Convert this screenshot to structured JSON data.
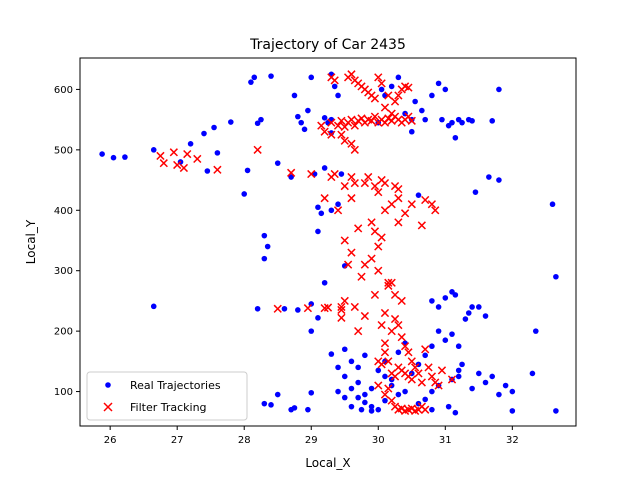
{
  "chart_data": {
    "type": "scatter",
    "title": "Trajectory of Car 2435",
    "xlabel": "Local_X",
    "ylabel": "Local_Y",
    "xlim": [
      25.55,
      32.95
    ],
    "ylim": [
      43,
      652
    ],
    "xticks": [
      26,
      27,
      28,
      29,
      30,
      31,
      32
    ],
    "yticks": [
      100,
      200,
      300,
      400,
      500,
      600
    ],
    "grid": false,
    "legend_position": "lower left",
    "series": [
      {
        "name": "Real Trajectories",
        "marker": "dot",
        "color": "#0000ff",
        "points": [
          [
            25.88,
            493
          ],
          [
            26.05,
            487
          ],
          [
            26.22,
            488
          ],
          [
            26.65,
            500
          ],
          [
            26.65,
            241
          ],
          [
            27.05,
            480
          ],
          [
            27.2,
            510
          ],
          [
            27.4,
            527
          ],
          [
            27.45,
            465
          ],
          [
            27.55,
            537
          ],
          [
            27.6,
            495
          ],
          [
            27.8,
            546
          ],
          [
            28.0,
            427
          ],
          [
            28.05,
            466
          ],
          [
            28.1,
            612
          ],
          [
            28.15,
            620
          ],
          [
            28.2,
            544
          ],
          [
            28.25,
            550
          ],
          [
            28.3,
            358
          ],
          [
            28.3,
            320
          ],
          [
            28.35,
            340
          ],
          [
            28.4,
            622
          ],
          [
            28.5,
            478
          ],
          [
            28.6,
            237
          ],
          [
            28.7,
            455
          ],
          [
            28.75,
            590
          ],
          [
            28.8,
            555
          ],
          [
            28.85,
            545
          ],
          [
            28.9,
            534
          ],
          [
            28.95,
            565
          ],
          [
            29.0,
            620
          ],
          [
            29.05,
            460
          ],
          [
            29.1,
            405
          ],
          [
            29.15,
            395
          ],
          [
            29.2,
            470
          ],
          [
            29.25,
            545
          ],
          [
            29.3,
            528
          ],
          [
            29.1,
            365
          ],
          [
            29.3,
            400
          ],
          [
            29.4,
            410
          ],
          [
            29.45,
            460
          ],
          [
            29.5,
            308
          ],
          [
            29.2,
            280
          ],
          [
            29.0,
            245
          ],
          [
            29.1,
            222
          ],
          [
            29.3,
            625
          ],
          [
            29.35,
            605
          ],
          [
            29.4,
            590
          ],
          [
            29.2,
            553
          ],
          [
            29.3,
            550
          ],
          [
            28.2,
            237
          ],
          [
            28.8,
            235
          ],
          [
            29.0,
            200
          ],
          [
            29.3,
            162
          ],
          [
            29.5,
            170
          ],
          [
            29.6,
            150
          ],
          [
            29.4,
            140
          ],
          [
            29.5,
            125
          ],
          [
            29.7,
            115
          ],
          [
            29.4,
            100
          ],
          [
            29.5,
            90
          ],
          [
            29.6,
            105
          ],
          [
            29.7,
            140
          ],
          [
            29.8,
            160
          ],
          [
            29.9,
            75
          ],
          [
            29.9,
            68
          ],
          [
            30.0,
            70
          ],
          [
            30.1,
            85
          ],
          [
            30.2,
            120
          ],
          [
            30.1,
            150
          ],
          [
            30.3,
            165
          ],
          [
            30.4,
            180
          ],
          [
            30.0,
            545
          ],
          [
            30.05,
            600
          ],
          [
            30.1,
            590
          ],
          [
            30.2,
            605
          ],
          [
            30.3,
            620
          ],
          [
            30.4,
            560
          ],
          [
            30.5,
            550
          ],
          [
            30.55,
            580
          ],
          [
            30.65,
            565
          ],
          [
            30.7,
            550
          ],
          [
            30.8,
            590
          ],
          [
            30.9,
            610
          ],
          [
            30.95,
            550
          ],
          [
            31.0,
            600
          ],
          [
            31.05,
            540
          ],
          [
            31.1,
            545
          ],
          [
            31.15,
            520
          ],
          [
            31.2,
            550
          ],
          [
            31.25,
            545
          ],
          [
            31.35,
            550
          ],
          [
            31.4,
            548
          ],
          [
            31.45,
            430
          ],
          [
            31.65,
            455
          ],
          [
            31.7,
            548
          ],
          [
            31.8,
            450
          ],
          [
            31.8,
            600
          ],
          [
            30.5,
            530
          ],
          [
            29.0,
            98
          ],
          [
            28.5,
            95
          ],
          [
            28.7,
            70
          ],
          [
            28.4,
            78
          ],
          [
            28.3,
            80
          ],
          [
            28.75,
            73
          ],
          [
            28.95,
            70
          ],
          [
            29.6,
            75
          ],
          [
            30.8,
            70
          ],
          [
            31.05,
            75
          ],
          [
            31.15,
            65
          ],
          [
            31.4,
            105
          ],
          [
            31.5,
            130
          ],
          [
            31.6,
            115
          ],
          [
            31.7,
            125
          ],
          [
            31.8,
            95
          ],
          [
            31.9,
            110
          ],
          [
            32.0,
            100
          ],
          [
            32.0,
            68
          ],
          [
            32.3,
            130
          ],
          [
            32.35,
            200
          ],
          [
            32.6,
            410
          ],
          [
            32.65,
            68
          ],
          [
            32.65,
            290
          ],
          [
            31.0,
            255
          ],
          [
            31.1,
            265
          ],
          [
            31.15,
            260
          ],
          [
            31.3,
            220
          ],
          [
            31.35,
            230
          ],
          [
            31.4,
            240
          ],
          [
            31.5,
            240
          ],
          [
            31.6,
            225
          ],
          [
            31.2,
            175
          ],
          [
            31.1,
            195
          ],
          [
            31.0,
            185
          ],
          [
            30.9,
            200
          ],
          [
            30.8,
            175
          ],
          [
            30.7,
            160
          ],
          [
            30.6,
            145
          ],
          [
            30.5,
            130
          ],
          [
            30.4,
            100
          ],
          [
            30.3,
            95
          ],
          [
            30.2,
            110
          ],
          [
            30.1,
            125
          ],
          [
            30.0,
            135
          ],
          [
            29.9,
            105
          ],
          [
            29.8,
            95
          ],
          [
            29.7,
            90
          ],
          [
            29.75,
            70
          ],
          [
            29.8,
            82
          ],
          [
            30.6,
            425
          ],
          [
            30.8,
            250
          ],
          [
            30.9,
            240
          ],
          [
            31.2,
            135
          ],
          [
            31.1,
            120
          ],
          [
            30.9,
            110
          ],
          [
            30.8,
            100
          ],
          [
            30.7,
            87
          ],
          [
            30.6,
            80
          ],
          [
            31.25,
            145
          ],
          [
            31.2,
            125
          ]
        ]
      },
      {
        "name": "Filter Tracking",
        "marker": "x",
        "color": "#ff0000",
        "points": [
          [
            26.75,
            490
          ],
          [
            26.8,
            478
          ],
          [
            26.95,
            496
          ],
          [
            27.0,
            475
          ],
          [
            27.1,
            470
          ],
          [
            27.15,
            493
          ],
          [
            27.3,
            485
          ],
          [
            27.6,
            467
          ],
          [
            28.2,
            500
          ],
          [
            28.5,
            237
          ],
          [
            28.7,
            462
          ],
          [
            28.95,
            238
          ],
          [
            29.0,
            460
          ],
          [
            29.2,
            238
          ],
          [
            29.25,
            239
          ],
          [
            29.3,
            525
          ],
          [
            29.35,
            460
          ],
          [
            29.45,
            240
          ],
          [
            29.45,
            235
          ],
          [
            29.45,
            222
          ],
          [
            29.5,
            250
          ],
          [
            29.5,
            350
          ],
          [
            29.55,
            310
          ],
          [
            29.6,
            330
          ],
          [
            29.6,
            420
          ],
          [
            29.65,
            240
          ],
          [
            29.7,
            200
          ],
          [
            29.7,
            370
          ],
          [
            29.75,
            290
          ],
          [
            29.8,
            310
          ],
          [
            29.8,
            225
          ],
          [
            29.9,
            380
          ],
          [
            29.95,
            260
          ],
          [
            30.0,
            340
          ],
          [
            30.0,
            150
          ],
          [
            30.05,
            210
          ],
          [
            30.05,
            355
          ],
          [
            30.1,
            230
          ],
          [
            30.1,
            180
          ],
          [
            30.15,
            275
          ],
          [
            30.2,
            280
          ],
          [
            30.25,
            220
          ],
          [
            30.3,
            380
          ],
          [
            30.35,
            190
          ],
          [
            30.4,
            175
          ],
          [
            30.45,
            165
          ],
          [
            30.5,
            150
          ],
          [
            30.55,
            140
          ],
          [
            30.6,
            130
          ],
          [
            30.65,
            115
          ],
          [
            30.7,
            170
          ],
          [
            30.75,
            140
          ],
          [
            30.8,
            125
          ],
          [
            30.85,
            115
          ],
          [
            30.9,
            110
          ],
          [
            30.95,
            135
          ],
          [
            31.1,
            120
          ],
          [
            30.65,
            375
          ],
          [
            30.7,
            417
          ],
          [
            30.8,
            410
          ],
          [
            30.85,
            400
          ],
          [
            30.5,
            410
          ],
          [
            30.4,
            395
          ],
          [
            30.3,
            420
          ],
          [
            30.25,
            440
          ],
          [
            30.1,
            445
          ],
          [
            30.05,
            450
          ],
          [
            30.0,
            430
          ],
          [
            29.95,
            440
          ],
          [
            29.85,
            455
          ],
          [
            29.8,
            445
          ],
          [
            29.65,
            445
          ],
          [
            29.6,
            455
          ],
          [
            29.5,
            440
          ],
          [
            29.4,
            400
          ],
          [
            29.3,
            455
          ],
          [
            29.2,
            420
          ],
          [
            29.15,
            540
          ],
          [
            29.2,
            530
          ],
          [
            29.3,
            545
          ],
          [
            29.4,
            540
          ],
          [
            29.45,
            548
          ],
          [
            29.5,
            538
          ],
          [
            29.55,
            545
          ],
          [
            29.6,
            550
          ],
          [
            29.65,
            540
          ],
          [
            29.7,
            548
          ],
          [
            29.75,
            552
          ],
          [
            29.8,
            545
          ],
          [
            29.85,
            550
          ],
          [
            29.9,
            548
          ],
          [
            29.95,
            555
          ],
          [
            30.0,
            545
          ],
          [
            30.05,
            550
          ],
          [
            30.1,
            545
          ],
          [
            30.15,
            552
          ],
          [
            30.2,
            548
          ],
          [
            30.25,
            555
          ],
          [
            30.3,
            550
          ],
          [
            30.35,
            545
          ],
          [
            30.4,
            550
          ],
          [
            30.45,
            555
          ],
          [
            30.5,
            548
          ],
          [
            29.3,
            620
          ],
          [
            29.35,
            615
          ],
          [
            29.55,
            620
          ],
          [
            29.6,
            625
          ],
          [
            29.65,
            615
          ],
          [
            29.7,
            610
          ],
          [
            29.75,
            605
          ],
          [
            29.8,
            600
          ],
          [
            29.85,
            595
          ],
          [
            29.9,
            590
          ],
          [
            29.95,
            585
          ],
          [
            30.0,
            620
          ],
          [
            30.05,
            610
          ],
          [
            30.1,
            570
          ],
          [
            30.15,
            590
          ],
          [
            30.2,
            560
          ],
          [
            30.25,
            580
          ],
          [
            30.3,
            590
          ],
          [
            30.35,
            600
          ],
          [
            30.4,
            605
          ],
          [
            30.45,
            603
          ],
          [
            29.6,
            510
          ],
          [
            29.5,
            515
          ],
          [
            29.45,
            525
          ],
          [
            29.65,
            500
          ],
          [
            30.1,
            95
          ],
          [
            30.15,
            105
          ],
          [
            30.2,
            85
          ],
          [
            30.25,
            75
          ],
          [
            30.3,
            70
          ],
          [
            30.35,
            72
          ],
          [
            30.4,
            68
          ],
          [
            30.45,
            70
          ],
          [
            30.5,
            72
          ],
          [
            30.55,
            68
          ],
          [
            30.6,
            70
          ],
          [
            30.65,
            75
          ],
          [
            30.7,
            70
          ],
          [
            30.2,
            130
          ],
          [
            30.25,
            125
          ],
          [
            30.3,
            140
          ],
          [
            30.35,
            135
          ],
          [
            30.4,
            130
          ],
          [
            30.45,
            125
          ],
          [
            30.5,
            120
          ],
          [
            30.15,
            150
          ],
          [
            30.05,
            145
          ],
          [
            30.0,
            110
          ],
          [
            30.1,
            165
          ],
          [
            30.2,
            200
          ],
          [
            30.3,
            210
          ],
          [
            30.35,
            250
          ],
          [
            30.25,
            260
          ],
          [
            30.15,
            280
          ],
          [
            30.0,
            300
          ],
          [
            29.9,
            320
          ],
          [
            29.95,
            365
          ],
          [
            30.1,
            400
          ],
          [
            30.2,
            410
          ],
          [
            30.3,
            435
          ]
        ]
      }
    ]
  }
}
